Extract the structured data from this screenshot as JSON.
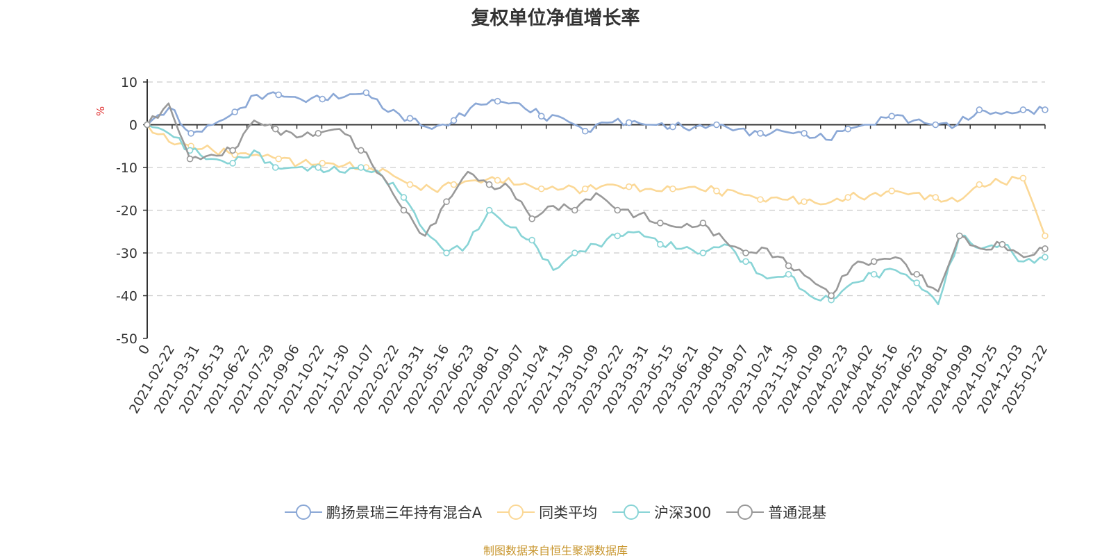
{
  "chart_data": {
    "type": "line",
    "title": "复权单位净值增长率",
    "ylabel": "%",
    "ylim": [
      -50,
      10
    ],
    "yticks": [
      10,
      0,
      -10,
      -20,
      -30,
      -40,
      -50
    ],
    "grid": true,
    "legend_position": "bottom-center",
    "x_tick_labels": [
      "0",
      "2021-02-22",
      "2021-03-31",
      "2021-05-13",
      "2021-06-22",
      "2021-07-29",
      "2021-09-06",
      "2021-10-22",
      "2021-11-30",
      "2022-01-07",
      "2022-02-22",
      "2022-03-31",
      "2022-05-16",
      "2022-06-23",
      "2022-08-01",
      "2022-09-07",
      "2022-10-24",
      "2022-11-30",
      "2023-01-09",
      "2023-02-22",
      "2023-03-31",
      "2023-05-15",
      "2023-06-21",
      "2023-08-01",
      "2023-09-07",
      "2023-10-24",
      "2023-11-30",
      "2024-01-09",
      "2024-02-23",
      "2024-04-02",
      "2024-05-16",
      "2024-06-25",
      "2024-08-01",
      "2024-09-09",
      "2024-10-25",
      "2024-12-03",
      "2025-01-22"
    ],
    "series": [
      {
        "name": "鹏扬景瑞三年持有混合A",
        "color": "#8ba8d6",
        "values": [
          0,
          4,
          -2,
          0,
          3,
          7,
          7,
          6,
          6,
          6.5,
          7.5,
          3,
          1.5,
          -1,
          1,
          5,
          5.5,
          5,
          2,
          1.5,
          -1.5,
          0.5,
          0.5,
          0,
          -0.5,
          -0.5,
          0,
          -1,
          -2,
          -1.5,
          -2,
          -3.5,
          -1,
          0,
          2,
          1,
          0,
          0,
          3.5,
          2.5,
          3.5,
          3.5
        ]
      },
      {
        "name": "同类平均",
        "color": "#fbd896",
        "values": [
          0,
          -4,
          -5,
          -6,
          -7,
          -7,
          -8,
          -9,
          -9,
          -9.5,
          -10,
          -11,
          -14,
          -15,
          -14,
          -13,
          -13,
          -14,
          -15,
          -15,
          -15,
          -14,
          -14.5,
          -15,
          -15,
          -14.5,
          -15.5,
          -16,
          -17.5,
          -17.5,
          -18,
          -18.5,
          -17,
          -16.5,
          -15.5,
          -16,
          -17,
          -18,
          -14,
          -13.5,
          -12.5,
          -26
        ]
      },
      {
        "name": "沪深300",
        "color": "#88d4d6",
        "values": [
          0,
          -2,
          -6,
          -8,
          -9,
          -6,
          -10,
          -10,
          -10,
          -11,
          -10,
          -12,
          -17,
          -25,
          -30,
          -28,
          -20,
          -24,
          -27,
          -34,
          -30,
          -28,
          -26,
          -25,
          -28,
          -29,
          -30,
          -28,
          -32,
          -36,
          -35,
          -40,
          -41,
          -37,
          -35,
          -34,
          -37,
          -42,
          -26,
          -29,
          -28,
          -32,
          -31
        ]
      },
      {
        "name": "普通混基",
        "color": "#999999",
        "values": [
          0,
          5,
          -8,
          -7,
          -6,
          1,
          -1,
          -3,
          -2,
          -1,
          -6,
          -12,
          -20,
          -26,
          -18,
          -11,
          -14,
          -15,
          -22,
          -19,
          -20,
          -16,
          -20,
          -21,
          -23,
          -24,
          -23,
          -27,
          -30,
          -29,
          -33,
          -36,
          -40,
          -33,
          -32,
          -31,
          -35,
          -39,
          -26,
          -29,
          -28,
          -31,
          -29
        ]
      }
    ]
  },
  "legend": {
    "items": [
      "鹏扬景瑞三年持有混合A",
      "同类平均",
      "沪深300",
      "普通混基"
    ]
  },
  "footer": {
    "source": "制图数据来自恒生聚源数据库"
  },
  "colors": {
    "unit": "#e03030",
    "axis": "#333333",
    "grid": "#cccccc",
    "source": "#c8962e"
  }
}
